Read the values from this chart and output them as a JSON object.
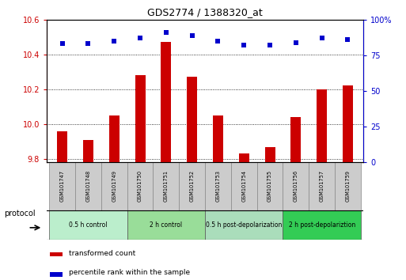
{
  "title": "GDS2774 / 1388320_at",
  "samples": [
    "GSM101747",
    "GSM101748",
    "GSM101749",
    "GSM101750",
    "GSM101751",
    "GSM101752",
    "GSM101753",
    "GSM101754",
    "GSM101755",
    "GSM101756",
    "GSM101757",
    "GSM101759"
  ],
  "transformed_count": [
    9.96,
    9.91,
    10.05,
    10.28,
    10.47,
    10.27,
    10.05,
    9.83,
    9.87,
    10.04,
    10.2,
    10.22
  ],
  "percentile_rank": [
    83,
    83,
    85,
    87,
    91,
    89,
    85,
    82,
    82,
    84,
    87,
    86
  ],
  "bar_color": "#cc0000",
  "scatter_color": "#0000cc",
  "ylim_left": [
    9.78,
    10.6
  ],
  "ylim_right": [
    0,
    100
  ],
  "yticks_left": [
    9.8,
    10.0,
    10.2,
    10.4,
    10.6
  ],
  "yticks_right": [
    0,
    25,
    50,
    75,
    100
  ],
  "ytick_labels_right": [
    "0",
    "25",
    "50",
    "75",
    "100%"
  ],
  "groups": [
    {
      "label": "0.5 h control",
      "start": 0,
      "end": 2,
      "color": "#bbeecc"
    },
    {
      "label": "2 h control",
      "start": 3,
      "end": 5,
      "color": "#99dd99"
    },
    {
      "label": "0.5 h post-depolarization",
      "start": 6,
      "end": 8,
      "color": "#aaddbb"
    },
    {
      "label": "2 h post-depolariztion",
      "start": 9,
      "end": 11,
      "color": "#33cc55"
    }
  ],
  "legend_items": [
    {
      "label": "transformed count",
      "color": "#cc0000"
    },
    {
      "label": "percentile rank within the sample",
      "color": "#0000cc"
    }
  ],
  "protocol_label": "protocol",
  "bg_color": "#ffffff",
  "plot_bg": "#ffffff",
  "label_box_color": "#cccccc",
  "bar_width": 0.4
}
